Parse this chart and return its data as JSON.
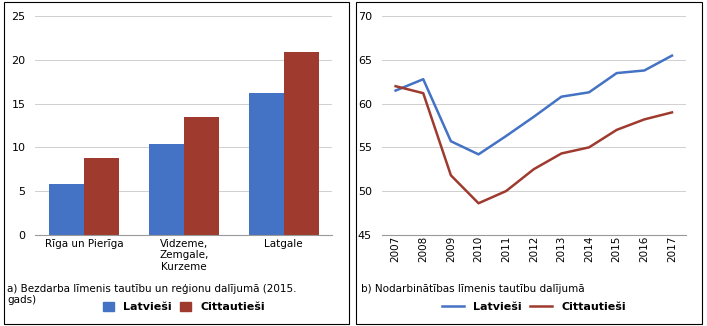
{
  "bar_categories": [
    "Rīga un Pierīga",
    "Vidzeme,\nZemgale,\nKurzeme",
    "Latgale"
  ],
  "bar_latviesi": [
    5.8,
    10.4,
    16.2
  ],
  "bar_cittautieši": [
    8.8,
    13.5,
    20.9
  ],
  "bar_ylim": [
    0,
    25
  ],
  "bar_yticks": [
    0,
    5,
    10,
    15,
    20,
    25
  ],
  "bar_color_latviesi": "#4472c4",
  "bar_color_cittautiesi": "#9e3b2e",
  "line_years": [
    2007,
    2008,
    2009,
    2010,
    2011,
    2012,
    2013,
    2014,
    2015,
    2016,
    2017
  ],
  "line_latviesi": [
    61.5,
    62.8,
    55.7,
    54.2,
    56.3,
    58.5,
    60.8,
    61.3,
    63.5,
    63.8,
    65.5
  ],
  "line_cittautiesi": [
    62.0,
    61.2,
    51.8,
    48.6,
    50.0,
    52.5,
    54.3,
    55.0,
    57.0,
    58.2,
    59.0
  ],
  "line_ylim": [
    45,
    70
  ],
  "line_yticks": [
    45,
    50,
    55,
    60,
    65,
    70
  ],
  "line_color_latviesi": "#4472c4",
  "line_color_cittautiesi": "#9e3b2e",
  "legend_latviesi": "Latvieši",
  "legend_cittautiesi": "Cittautieši",
  "caption_a": "a) Bezdarba līmenis tautību un reģionu dalījumā (2015.\ngads)",
  "caption_b": "b) Nodarbinātības līmenis tautību dalījumā",
  "background_color": "#ffffff"
}
